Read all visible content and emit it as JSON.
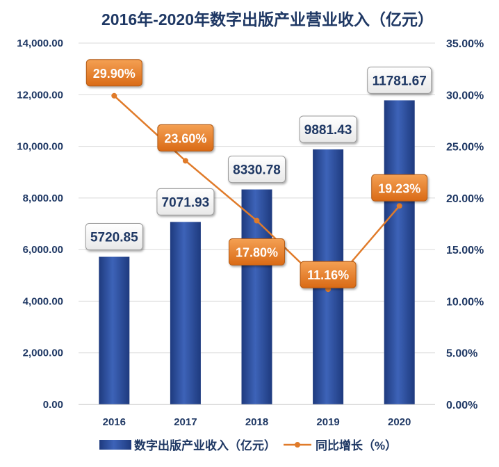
{
  "chart_data": {
    "type": "bar",
    "title": "2016年-2020年数字出版产业营业收入（亿元）",
    "categories": [
      "2016",
      "2017",
      "2018",
      "2019",
      "2020"
    ],
    "series": [
      {
        "name": "数字出版产业收入（亿元）",
        "type": "bar",
        "axis": "left",
        "values": [
          5720.85,
          7071.93,
          8330.78,
          9881.43,
          11781.67
        ],
        "labels": [
          "5720.85",
          "7071.93",
          "8330.78",
          "9881.43",
          "11781.67"
        ],
        "color": "#2f4e9a"
      },
      {
        "name": "同比增长（%）",
        "type": "line",
        "axis": "right",
        "values": [
          29.9,
          23.6,
          17.8,
          11.16,
          19.23
        ],
        "labels": [
          "29.90%",
          "23.60%",
          "17.80%",
          "11.16%",
          "19.23%"
        ],
        "color": "#e07b2a"
      }
    ],
    "y_left": {
      "lim": [
        0,
        14000
      ],
      "ticks": [
        0,
        2000,
        4000,
        6000,
        8000,
        10000,
        12000,
        14000
      ],
      "tick_labels": [
        "0.00",
        "2,000.00",
        "4,000.00",
        "6,000.00",
        "8,000.00",
        "10,000.00",
        "12,000.00",
        "14,000.00"
      ]
    },
    "y_right": {
      "lim": [
        0,
        35
      ],
      "ticks": [
        0,
        5,
        10,
        15,
        20,
        25,
        30,
        35
      ],
      "tick_labels": [
        "0.00%",
        "5.00%",
        "10.00%",
        "15.00%",
        "20.00%",
        "25.00%",
        "30.00%",
        "35.00%"
      ]
    },
    "grid": true,
    "legend_position": "bottom"
  }
}
